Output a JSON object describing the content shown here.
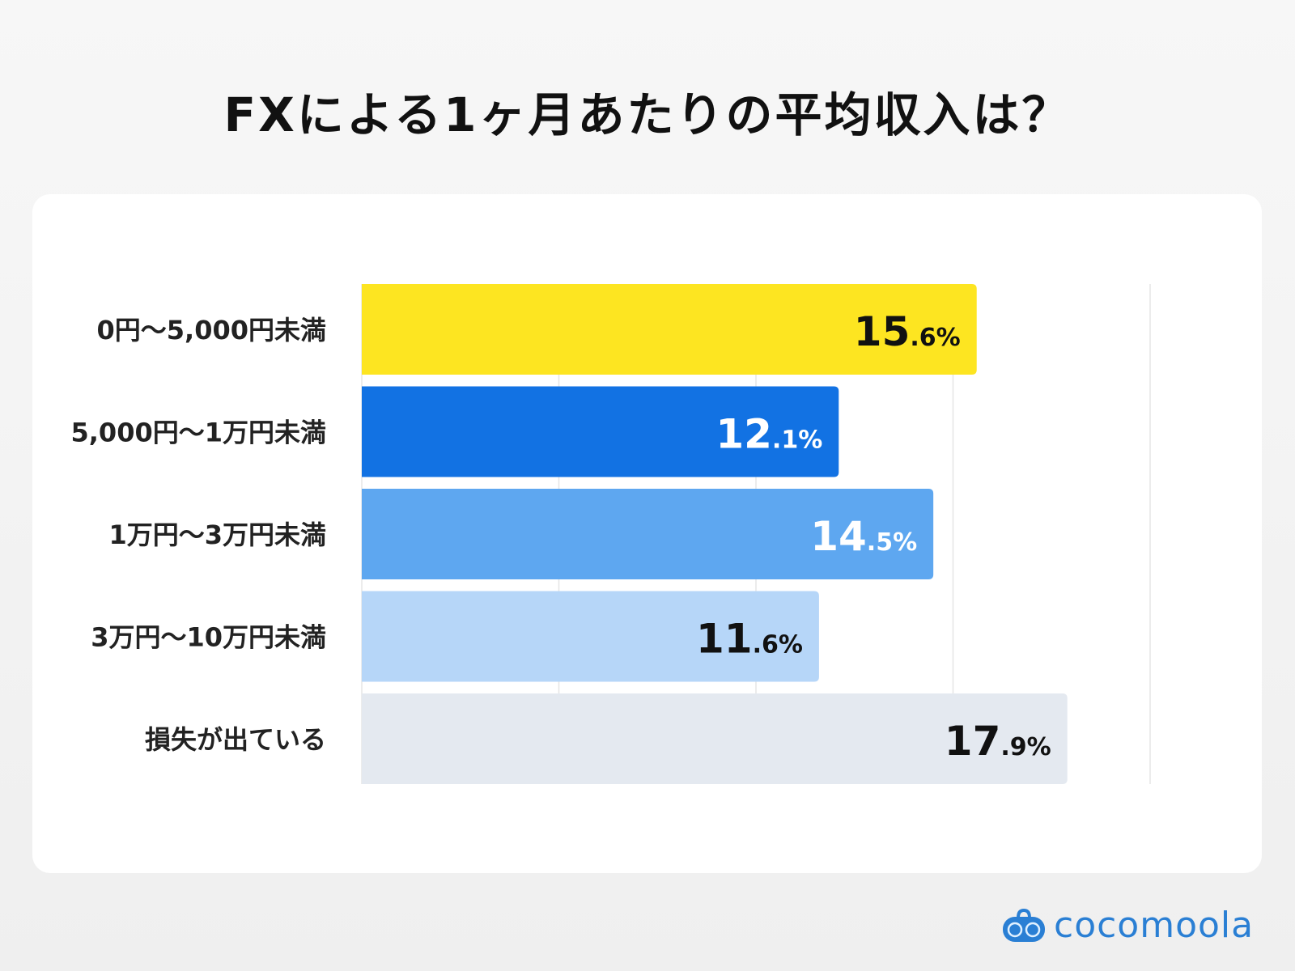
{
  "chart_data": {
    "type": "bar",
    "orientation": "horizontal",
    "title": "FXによる1ヶ月あたりの平均収入は？",
    "categories": [
      "0円〜5,000円未満",
      "5,000円〜1万円未満",
      "1万円〜3万円未満",
      "3万円〜10万円未満",
      "損失が出ている"
    ],
    "values": [
      15.6,
      12.1,
      14.5,
      11.6,
      17.9
    ],
    "data_labels": [
      {
        "int": "15",
        "dec": ".6%"
      },
      {
        "int": "12",
        "dec": ".1%"
      },
      {
        "int": "14",
        "dec": ".5%"
      },
      {
        "int": "11",
        "dec": ".6%"
      },
      {
        "int": "17",
        "dec": ".9%"
      }
    ],
    "colors": [
      "#FDE521",
      "#1272E3",
      "#5EA7F0",
      "#B6D6F8",
      "#E4E9F0"
    ],
    "label_colors": [
      "#111111",
      "#ffffff",
      "#ffffff",
      "#111111",
      "#111111"
    ],
    "xlim": [
      0,
      20
    ],
    "grid": true,
    "unit": "%"
  },
  "brand": {
    "name": "cocomoola",
    "color": "#2a7fd4"
  }
}
